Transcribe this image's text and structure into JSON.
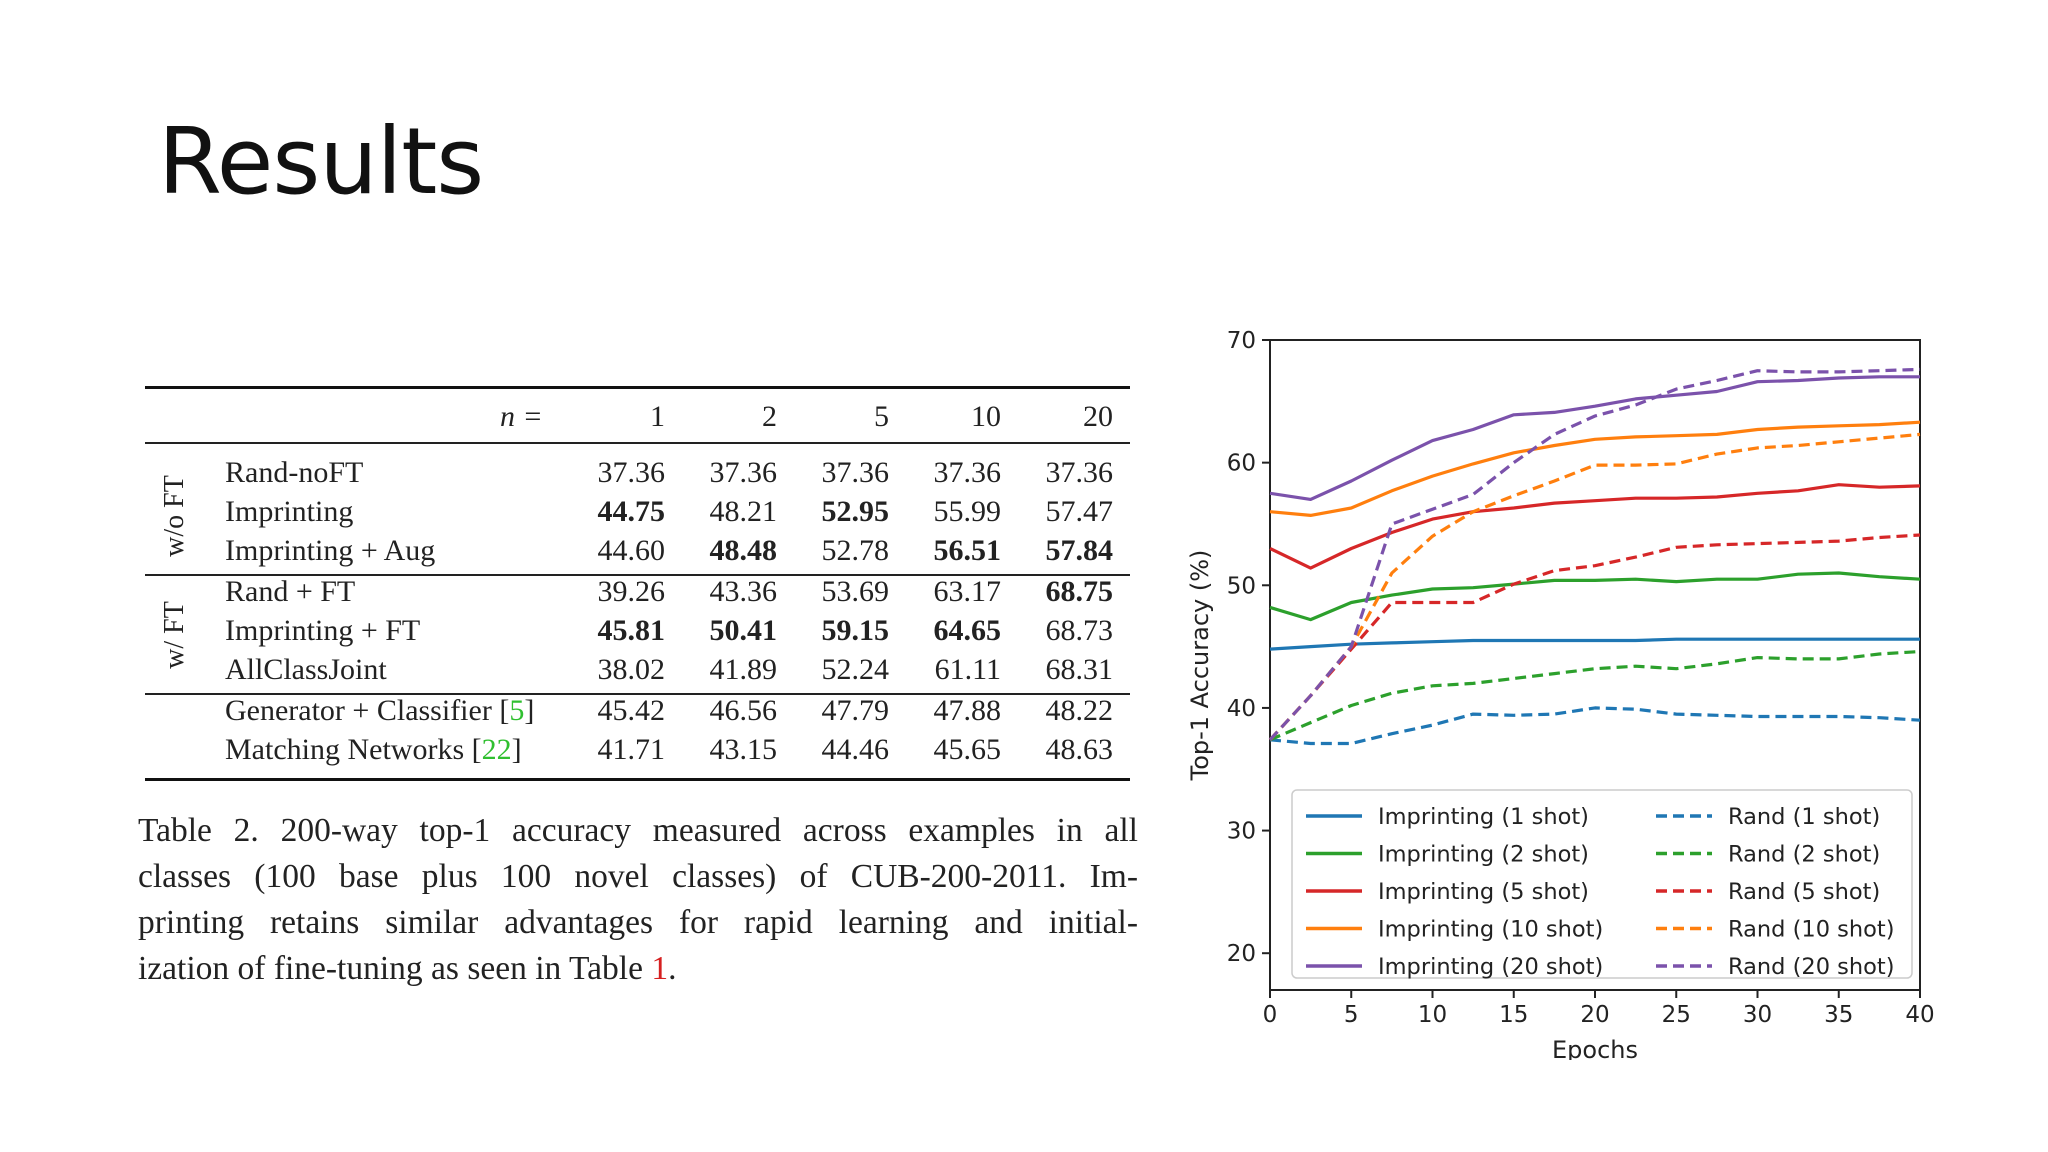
{
  "slide": {
    "title": "Results"
  },
  "table": {
    "n_label": "n =",
    "columns": [
      "1",
      "2",
      "5",
      "10",
      "20"
    ],
    "groups": [
      {
        "label": "w/o FT",
        "rows": [
          {
            "method": "Rand-noFT",
            "values": [
              "37.36",
              "37.36",
              "37.36",
              "37.36",
              "37.36"
            ],
            "bold": [
              false,
              false,
              false,
              false,
              false
            ]
          },
          {
            "method": "Imprinting",
            "values": [
              "44.75",
              "48.21",
              "52.95",
              "55.99",
              "57.47"
            ],
            "bold": [
              true,
              false,
              true,
              false,
              false
            ]
          },
          {
            "method": "Imprinting + Aug",
            "values": [
              "44.60",
              "48.48",
              "52.78",
              "56.51",
              "57.84"
            ],
            "bold": [
              false,
              true,
              false,
              true,
              true
            ]
          }
        ]
      },
      {
        "label": "w/ FT",
        "rows": [
          {
            "method": "Rand + FT",
            "values": [
              "39.26",
              "43.36",
              "53.69",
              "63.17",
              "68.75"
            ],
            "bold": [
              false,
              false,
              false,
              false,
              true
            ]
          },
          {
            "method": "Imprinting + FT",
            "values": [
              "45.81",
              "50.41",
              "59.15",
              "64.65",
              "68.73"
            ],
            "bold": [
              true,
              true,
              true,
              true,
              false
            ]
          },
          {
            "method": "AllClassJoint",
            "values": [
              "38.02",
              "41.89",
              "52.24",
              "61.11",
              "68.31"
            ],
            "bold": [
              false,
              false,
              false,
              false,
              false
            ]
          }
        ]
      },
      {
        "label": "",
        "rows": [
          {
            "method": "Generator + Classifier [",
            "ref": "5",
            "ref_close": "]",
            "values": [
              "45.42",
              "46.56",
              "47.79",
              "47.88",
              "48.22"
            ],
            "bold": [
              false,
              false,
              false,
              false,
              false
            ]
          },
          {
            "method": "Matching Networks [",
            "ref": "22",
            "ref_close": "]",
            "values": [
              "41.71",
              "43.15",
              "44.46",
              "45.65",
              "48.63"
            ],
            "bold": [
              false,
              false,
              false,
              false,
              false
            ]
          }
        ]
      }
    ]
  },
  "caption": {
    "lines": [
      "Table 2. 200-way top-1 accuracy measured across examples in all",
      "classes (100 base plus 100 novel classes) of CUB-200-2011. Im-",
      "printing retains similar advantages for rapid learning and initial-"
    ],
    "last_line_pre": "ization of fine-tuning as seen in Table ",
    "last_line_ref": "1",
    "last_line_post": "."
  },
  "chart_data": {
    "type": "line",
    "xlabel": "Epochs",
    "ylabel": "Top-1 Accuracy (%)",
    "xlim": [
      0,
      40
    ],
    "ylim": [
      17,
      70
    ],
    "xticks": [
      0,
      5,
      10,
      15,
      20,
      25,
      30,
      35,
      40
    ],
    "yticks": [
      20,
      30,
      40,
      50,
      60,
      70
    ],
    "grid": false,
    "legend_placement": "bottom",
    "x": [
      0,
      2.5,
      5,
      7.5,
      10,
      12.5,
      15,
      17.5,
      20,
      22.5,
      25,
      27.5,
      30,
      32.5,
      35,
      37.5,
      40
    ],
    "series": [
      {
        "name": "Imprinting (1 shot)",
        "color": "#1f77b4",
        "dash": false,
        "values": [
          44.8,
          45.0,
          45.2,
          45.3,
          45.4,
          45.5,
          45.5,
          45.5,
          45.5,
          45.5,
          45.6,
          45.6,
          45.6,
          45.6,
          45.6,
          45.6,
          45.6
        ]
      },
      {
        "name": "Imprinting (2 shot)",
        "color": "#2ca02c",
        "dash": false,
        "values": [
          48.2,
          47.2,
          48.6,
          49.2,
          49.7,
          49.8,
          50.1,
          50.4,
          50.4,
          50.5,
          50.3,
          50.5,
          50.5,
          50.9,
          51.0,
          50.7,
          50.5
        ]
      },
      {
        "name": "Imprinting (5 shot)",
        "color": "#d62728",
        "dash": false,
        "values": [
          53.0,
          51.4,
          53.0,
          54.3,
          55.4,
          56.0,
          56.3,
          56.7,
          56.9,
          57.1,
          57.1,
          57.2,
          57.5,
          57.7,
          58.2,
          58.0,
          58.1
        ]
      },
      {
        "name": "Imprinting (10 shot)",
        "color": "#ff7f0e",
        "dash": false,
        "values": [
          56.0,
          55.7,
          56.3,
          57.7,
          58.9,
          59.9,
          60.8,
          61.4,
          61.9,
          62.1,
          62.2,
          62.3,
          62.7,
          62.9,
          63.0,
          63.1,
          63.3
        ]
      },
      {
        "name": "Imprinting (20 shot)",
        "color": "#7b52ab",
        "dash": false,
        "values": [
          57.5,
          57.0,
          58.5,
          60.2,
          61.8,
          62.7,
          63.9,
          64.1,
          64.6,
          65.2,
          65.5,
          65.8,
          66.6,
          66.7,
          66.9,
          67.0,
          67.0
        ]
      },
      {
        "name": "Rand (1 shot)",
        "color": "#1f77b4",
        "dash": true,
        "values": [
          37.4,
          37.1,
          37.1,
          37.9,
          38.6,
          39.5,
          39.4,
          39.5,
          40.0,
          39.9,
          39.5,
          39.4,
          39.3,
          39.3,
          39.3,
          39.2,
          39.0
        ]
      },
      {
        "name": "Rand (2 shot)",
        "color": "#2ca02c",
        "dash": true,
        "values": [
          37.4,
          38.8,
          40.2,
          41.2,
          41.8,
          42.0,
          42.4,
          42.8,
          43.2,
          43.4,
          43.2,
          43.6,
          44.1,
          44.0,
          44.0,
          44.4,
          44.6
        ]
      },
      {
        "name": "Rand (5 shot)",
        "color": "#d62728",
        "dash": true,
        "values": [
          37.4,
          41.0,
          44.8,
          48.6,
          48.6,
          48.6,
          50.1,
          51.2,
          51.6,
          52.3,
          53.1,
          53.3,
          53.4,
          53.5,
          53.6,
          53.9,
          54.1
        ]
      },
      {
        "name": "Rand (10 shot)",
        "color": "#ff7f0e",
        "dash": true,
        "values": [
          37.4,
          41.0,
          45.0,
          51.0,
          54.0,
          56.0,
          57.3,
          58.5,
          59.8,
          59.8,
          59.9,
          60.7,
          61.2,
          61.4,
          61.7,
          62.0,
          62.3
        ]
      },
      {
        "name": "Rand (20 shot)",
        "color": "#7b52ab",
        "dash": true,
        "values": [
          37.4,
          41.0,
          45.0,
          55.0,
          56.2,
          57.4,
          60.0,
          62.3,
          63.8,
          64.7,
          66.0,
          66.7,
          67.5,
          67.4,
          67.4,
          67.5,
          67.6
        ]
      }
    ]
  }
}
